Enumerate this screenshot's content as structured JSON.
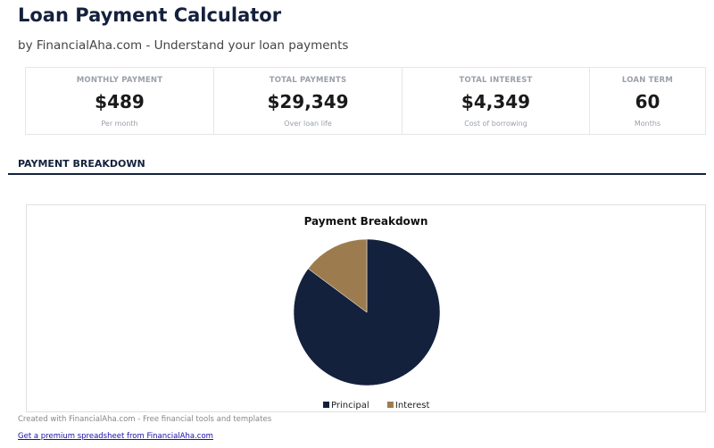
{
  "header": {
    "title": "Loan Payment Calculator",
    "subtitle": "by FinancialAha.com - Understand your loan payments"
  },
  "stats": [
    {
      "label": "MONTHLY PAYMENT",
      "value": "$489",
      "note": "Per month"
    },
    {
      "label": "TOTAL PAYMENTS",
      "value": "$29,349",
      "note": "Over loan life"
    },
    {
      "label": "TOTAL INTEREST",
      "value": "$4,349",
      "note": "Cost of borrowing"
    },
    {
      "label": "LOAN TERM",
      "value": "60",
      "note": "Months"
    }
  ],
  "section": {
    "title": "PAYMENT BREAKDOWN"
  },
  "chart_data": {
    "type": "pie",
    "title": "Payment Breakdown",
    "categories": [
      "Principal",
      "Interest"
    ],
    "values": [
      25000,
      4349
    ],
    "colors": [
      "#14213d",
      "#9c7c4e"
    ],
    "legend": "bottom"
  },
  "footer": {
    "credit": "Created with FinancialAha.com - Free financial tools and templates",
    "link": "Get a premium spreadsheet from FinancialAha.com"
  }
}
